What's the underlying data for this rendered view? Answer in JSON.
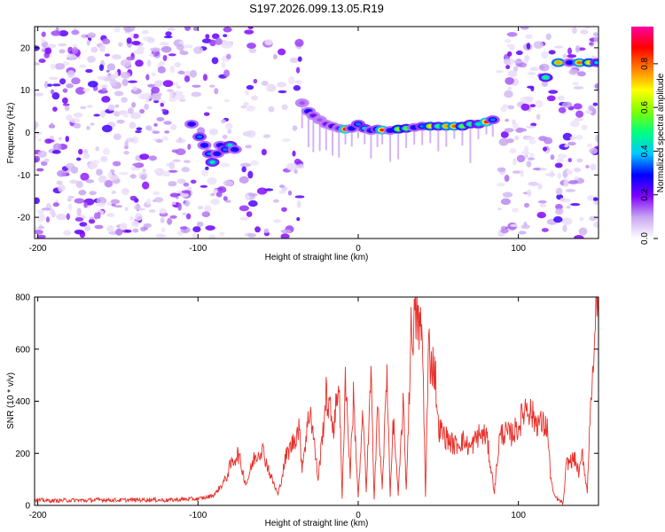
{
  "title": "S197.2026.099.13.05.R19",
  "chart_data": [
    {
      "type": "heatmap",
      "xlabel": "Height of straight line (km)",
      "ylabel": "Frequency (Hz)",
      "xlim": [
        -202,
        150
      ],
      "ylim": [
        -25,
        25
      ],
      "xticks": [
        -200,
        -100,
        0,
        100
      ],
      "yticks": [
        -20,
        -10,
        0,
        10,
        20
      ],
      "colorbar": {
        "label": "Normalized spectral amplitude",
        "range": [
          0,
          0.97
        ],
        "ticks": [
          0.0,
          0.2,
          0.4,
          0.6,
          0.8
        ],
        "colors": [
          "#ffffff",
          "#c8a8f0",
          "#8000ff",
          "#0000ff",
          "#00c8ff",
          "#00ff80",
          "#80ff00",
          "#ffff00",
          "#ff8000",
          "#ff0000",
          "#ff00a0"
        ]
      },
      "noise_regions": [
        {
          "x": [
            -202,
            -105
          ],
          "density": 0.55
        },
        {
          "x": [
            -103,
            -80
          ],
          "density": 0.35
        },
        {
          "x": [
            -72,
            -64
          ],
          "density": 0.45
        },
        {
          "x": [
            -63,
            -50
          ],
          "density": 0.15
        },
        {
          "x": [
            -48,
            -36
          ],
          "density": 0.35
        },
        {
          "x": [
            87,
            110
          ],
          "density": 0.5
        },
        {
          "x": [
            112,
            122
          ],
          "density": 0.4
        },
        {
          "x": [
            124,
            150
          ],
          "density": 0.45
        }
      ],
      "ridge": [
        {
          "x": -104,
          "y": 2,
          "a": 0.3
        },
        {
          "x": -99,
          "y": -1,
          "a": 0.35
        },
        {
          "x": -96,
          "y": -3,
          "a": 0.3
        },
        {
          "x": -93,
          "y": -5,
          "a": 0.35
        },
        {
          "x": -91,
          "y": -7,
          "a": 0.45
        },
        {
          "x": -88,
          "y": -5,
          "a": 0.3
        },
        {
          "x": -86,
          "y": -3,
          "a": 0.3
        },
        {
          "x": -83,
          "y": -4,
          "a": 0.35
        },
        {
          "x": -80,
          "y": -3,
          "a": 0.45
        },
        {
          "x": -77,
          "y": -4,
          "a": 0.3
        },
        {
          "x": -35,
          "y": 7,
          "a": 0.15
        },
        {
          "x": -31,
          "y": 5,
          "a": 0.3
        },
        {
          "x": -28,
          "y": 4,
          "a": 0.2
        },
        {
          "x": -24,
          "y": 3,
          "a": 0.15
        },
        {
          "x": -20,
          "y": 2,
          "a": 0.2
        },
        {
          "x": -16,
          "y": 1.5,
          "a": 0.25
        },
        {
          "x": -12,
          "y": 1,
          "a": 0.2
        },
        {
          "x": -8,
          "y": 0.8,
          "a": 0.9
        },
        {
          "x": -4,
          "y": 1,
          "a": 0.3
        },
        {
          "x": 0,
          "y": 2,
          "a": 0.35
        },
        {
          "x": 4,
          "y": 1,
          "a": 0.4
        },
        {
          "x": 8,
          "y": 0.5,
          "a": 0.3
        },
        {
          "x": 12,
          "y": 0.8,
          "a": 0.35
        },
        {
          "x": 15,
          "y": 0.6,
          "a": 0.85
        },
        {
          "x": 20,
          "y": 0.5,
          "a": 0.3
        },
        {
          "x": 25,
          "y": 0.8,
          "a": 0.6
        },
        {
          "x": 30,
          "y": 1,
          "a": 0.55
        },
        {
          "x": 35,
          "y": 1.2,
          "a": 0.3
        },
        {
          "x": 40,
          "y": 1.5,
          "a": 0.35
        },
        {
          "x": 45,
          "y": 1.5,
          "a": 0.7
        },
        {
          "x": 50,
          "y": 1.5,
          "a": 0.5
        },
        {
          "x": 55,
          "y": 1.5,
          "a": 0.75
        },
        {
          "x": 60,
          "y": 1.5,
          "a": 0.8
        },
        {
          "x": 65,
          "y": 1.5,
          "a": 0.55
        },
        {
          "x": 70,
          "y": 2,
          "a": 0.5
        },
        {
          "x": 75,
          "y": 2,
          "a": 0.45
        },
        {
          "x": 80,
          "y": 2.5,
          "a": 0.85
        },
        {
          "x": 84,
          "y": 3,
          "a": 0.35
        },
        {
          "x": 117,
          "y": 13,
          "a": 0.5
        },
        {
          "x": 125,
          "y": 16.5,
          "a": 0.75
        },
        {
          "x": 132,
          "y": 16.5,
          "a": 0.3
        },
        {
          "x": 138,
          "y": 16.5,
          "a": 0.8
        },
        {
          "x": 144,
          "y": 16.5,
          "a": 0.7
        },
        {
          "x": 149,
          "y": 16.5,
          "a": 0.4
        }
      ]
    },
    {
      "type": "line",
      "xlabel": "Height of straight line (km)",
      "ylabel": "SNR (10 * v/v)",
      "xlim": [
        -202,
        150
      ],
      "ylim": [
        0,
        800
      ],
      "xticks": [
        -200,
        -100,
        0,
        100
      ],
      "yticks": [
        0,
        200,
        400,
        600,
        800
      ],
      "color": "#e8302a",
      "x": [
        -202,
        -190,
        -180,
        -170,
        -160,
        -150,
        -140,
        -130,
        -120,
        -110,
        -100,
        -95,
        -90,
        -85,
        -82,
        -80,
        -75,
        -70,
        -65,
        -60,
        -55,
        -50,
        -45,
        -40,
        -37,
        -35,
        -30,
        -25,
        -20,
        -15,
        -12,
        -10,
        -8,
        -5,
        -3,
        0,
        3,
        5,
        8,
        10,
        12,
        15,
        18,
        20,
        22,
        25,
        28,
        30,
        33,
        35,
        37,
        38,
        40,
        42,
        44,
        45,
        48,
        50,
        55,
        60,
        65,
        70,
        75,
        80,
        85,
        88,
        90,
        95,
        100,
        105,
        110,
        115,
        118,
        120,
        122,
        125,
        128,
        130,
        135,
        138,
        140,
        143,
        145,
        147,
        148,
        149,
        150
      ],
      "y": [
        20,
        18,
        20,
        19,
        22,
        20,
        21,
        22,
        20,
        23,
        25,
        30,
        40,
        80,
        110,
        150,
        200,
        80,
        180,
        220,
        120,
        40,
        190,
        250,
        300,
        150,
        380,
        100,
        420,
        300,
        500,
        20,
        510,
        120,
        420,
        30,
        350,
        60,
        490,
        30,
        390,
        60,
        520,
        40,
        330,
        40,
        400,
        60,
        660,
        700,
        730,
        680,
        650,
        40,
        620,
        560,
        520,
        300,
        260,
        230,
        250,
        220,
        270,
        270,
        50,
        250,
        280,
        270,
        300,
        390,
        330,
        310,
        300,
        120,
        40,
        20,
        10,
        160,
        180,
        120,
        200,
        50,
        420,
        480,
        790,
        760,
        700
      ]
    }
  ]
}
